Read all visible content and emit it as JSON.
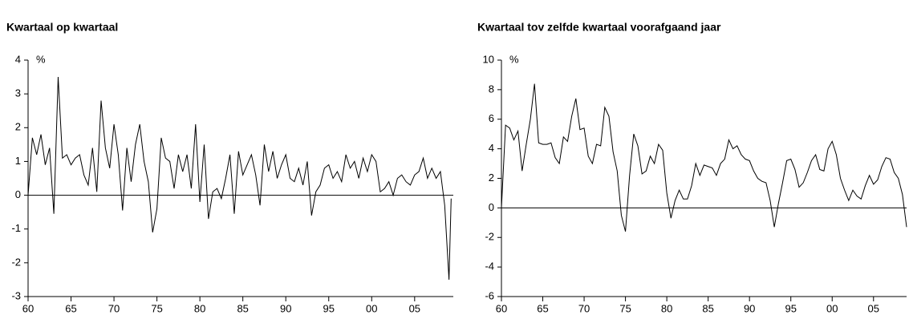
{
  "chart_data": [
    {
      "type": "line",
      "title": "Kwartaal op kwartaal",
      "unit": "%",
      "color": "#000000",
      "x": [
        1960,
        1960.5,
        1961,
        1961.5,
        1962,
        1962.5,
        1963,
        1963.5,
        1964,
        1964.5,
        1965,
        1965.5,
        1966,
        1966.5,
        1967,
        1967.5,
        1968,
        1968.5,
        1969,
        1969.5,
        1970,
        1970.5,
        1971,
        1971.5,
        1972,
        1972.5,
        1973,
        1973.5,
        1974,
        1974.5,
        1975,
        1975.5,
        1976,
        1976.5,
        1977,
        1977.5,
        1978,
        1978.5,
        1979,
        1979.5,
        1980,
        1980.5,
        1981,
        1981.5,
        1982,
        1982.5,
        1983,
        1983.5,
        1984,
        1984.5,
        1985,
        1985.5,
        1986,
        1986.5,
        1987,
        1987.5,
        1988,
        1988.5,
        1989,
        1989.5,
        1990,
        1990.5,
        1991,
        1991.5,
        1992,
        1992.5,
        1993,
        1993.5,
        1994,
        1994.5,
        1995,
        1995.5,
        1996,
        1996.5,
        1997,
        1997.5,
        1998,
        1998.5,
        1999,
        1999.5,
        2000,
        2000.5,
        2001,
        2001.5,
        2002,
        2002.5,
        2003,
        2003.5,
        2004,
        2004.5,
        2005,
        2005.5,
        2006,
        2006.5,
        2007,
        2007.5,
        2008,
        2008.5,
        2009,
        2009.25
      ],
      "values": [
        0,
        1.7,
        1.2,
        1.8,
        0.9,
        1.4,
        -0.55,
        3.5,
        1.1,
        1.2,
        0.9,
        1.1,
        1.2,
        0.6,
        0.3,
        1.4,
        0.1,
        2.8,
        1.4,
        0.8,
        2.1,
        1.2,
        -0.45,
        1.4,
        0.4,
        1.5,
        2.1,
        1.0,
        0.4,
        -1.1,
        -0.4,
        1.7,
        1.1,
        1.0,
        0.2,
        1.2,
        0.7,
        1.2,
        0.2,
        2.1,
        -0.2,
        1.5,
        -0.7,
        0.1,
        0.2,
        -0.1,
        0.5,
        1.2,
        -0.55,
        1.3,
        0.6,
        0.9,
        1.2,
        0.6,
        -0.3,
        1.5,
        0.7,
        1.3,
        0.5,
        0.9,
        1.2,
        0.5,
        0.4,
        0.8,
        0.3,
        1.0,
        -0.6,
        0.1,
        0.3,
        0.8,
        0.9,
        0.5,
        0.7,
        0.4,
        1.2,
        0.8,
        1.0,
        0.5,
        1.1,
        0.7,
        1.2,
        1.0,
        0.1,
        0.2,
        0.4,
        0.0,
        0.5,
        0.6,
        0.4,
        0.3,
        0.6,
        0.7,
        1.1,
        0.5,
        0.8,
        0.5,
        0.7,
        -0.3,
        -2.5,
        -0.1
      ],
      "xlim": [
        1960,
        2009.5
      ],
      "xticks": [
        {
          "value": 1960,
          "label": "60"
        },
        {
          "value": 1965,
          "label": "65"
        },
        {
          "value": 1970,
          "label": "70"
        },
        {
          "value": 1975,
          "label": "75"
        },
        {
          "value": 1980,
          "label": "80"
        },
        {
          "value": 1985,
          "label": "85"
        },
        {
          "value": 1990,
          "label": "90"
        },
        {
          "value": 1995,
          "label": "95"
        },
        {
          "value": 2000,
          "label": "00"
        },
        {
          "value": 2005,
          "label": "05"
        }
      ],
      "ylim": [
        -3,
        4
      ],
      "yticks": [
        -3,
        -2,
        -1,
        0,
        1,
        2,
        3,
        4
      ]
    },
    {
      "type": "line",
      "title": "Kwartaal tov zelfde kwartaal voorafgaand jaar",
      "unit": "%",
      "color": "#000000",
      "x": [
        1960,
        1960.5,
        1961,
        1961.5,
        1962,
        1962.5,
        1963,
        1963.5,
        1964,
        1964.5,
        1965,
        1965.5,
        1966,
        1966.5,
        1967,
        1967.5,
        1968,
        1968.5,
        1969,
        1969.5,
        1970,
        1970.5,
        1971,
        1971.5,
        1972,
        1972.5,
        1973,
        1973.5,
        1974,
        1974.5,
        1975,
        1975.5,
        1976,
        1976.5,
        1977,
        1977.5,
        1978,
        1978.5,
        1979,
        1979.5,
        1980,
        1980.5,
        1981,
        1981.5,
        1982,
        1982.5,
        1983,
        1983.5,
        1984,
        1984.5,
        1985,
        1985.5,
        1986,
        1986.5,
        1987,
        1987.5,
        1988,
        1988.5,
        1989,
        1989.5,
        1990,
        1990.5,
        1991,
        1991.5,
        1992,
        1992.5,
        1993,
        1993.5,
        1994,
        1994.5,
        1995,
        1995.5,
        1996,
        1996.5,
        1997,
        1997.5,
        1998,
        1998.5,
        1999,
        1999.5,
        2000,
        2000.5,
        2001,
        2001.5,
        2002,
        2002.5,
        2003,
        2003.5,
        2004,
        2004.5,
        2005,
        2005.5,
        2006,
        2006.5,
        2007,
        2007.5,
        2008,
        2008.5,
        2009
      ],
      "values": [
        0,
        5.6,
        5.4,
        4.6,
        5.2,
        2.5,
        4.3,
        6.0,
        8.4,
        4.4,
        4.3,
        4.3,
        4.4,
        3.4,
        3.0,
        4.8,
        4.5,
        6.2,
        7.4,
        5.3,
        5.4,
        3.5,
        3.0,
        4.3,
        4.2,
        6.8,
        6.2,
        3.8,
        2.5,
        -0.5,
        -1.6,
        2.2,
        5.0,
        4.2,
        2.3,
        2.5,
        3.5,
        3.0,
        4.3,
        3.9,
        1.0,
        -0.7,
        0.5,
        1.2,
        0.6,
        0.6,
        1.5,
        3.0,
        2.2,
        2.9,
        2.8,
        2.7,
        2.2,
        3.0,
        3.3,
        4.6,
        4.0,
        4.2,
        3.6,
        3.3,
        3.2,
        2.5,
        2.0,
        1.8,
        1.7,
        0.5,
        -1.3,
        0.3,
        1.7,
        3.2,
        3.3,
        2.6,
        1.4,
        1.7,
        2.4,
        3.2,
        3.6,
        2.6,
        2.5,
        4.0,
        4.5,
        3.6,
        2.0,
        1.2,
        0.5,
        1.2,
        0.8,
        0.6,
        1.5,
        2.2,
        1.6,
        1.9,
        2.8,
        3.4,
        3.3,
        2.4,
        2.0,
        0.9,
        -1.3
      ],
      "xlim": [
        1960,
        2009
      ],
      "xticks": [
        {
          "value": 1960,
          "label": "60"
        },
        {
          "value": 1965,
          "label": "65"
        },
        {
          "value": 1970,
          "label": "70"
        },
        {
          "value": 1975,
          "label": "75"
        },
        {
          "value": 1980,
          "label": "80"
        },
        {
          "value": 1985,
          "label": "85"
        },
        {
          "value": 1990,
          "label": "90"
        },
        {
          "value": 1995,
          "label": "95"
        },
        {
          "value": 2000,
          "label": "00"
        },
        {
          "value": 2005,
          "label": "05"
        }
      ],
      "ylim": [
        -6,
        10
      ],
      "yticks": [
        -6,
        -4,
        -2,
        0,
        2,
        4,
        6,
        8,
        10
      ]
    }
  ]
}
